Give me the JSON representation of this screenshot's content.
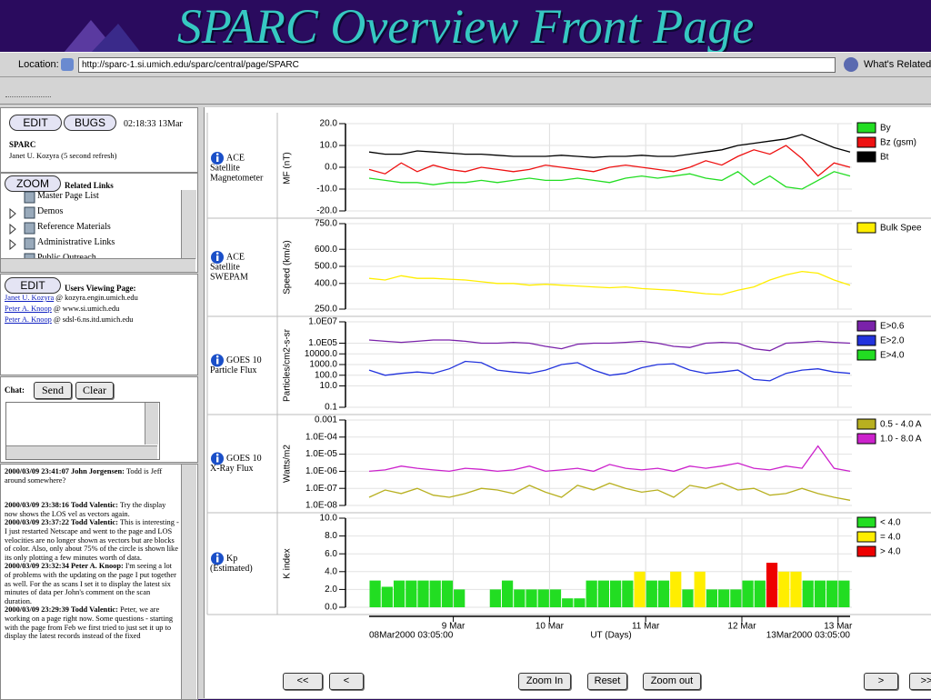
{
  "slide_title": "SPARC Overview Front Page",
  "browser": {
    "location_label": "Location:",
    "url": "http://sparc-1.si.umich.edu/sparc/central/page/SPARC",
    "whats_related": "What's Related"
  },
  "sidebar": {
    "edit_button": "EDIT",
    "bugs_button": "BUGS",
    "time": "02:18:33 13Mar",
    "page_title": "SPARC",
    "page_user": "Janet U. Kozyra (5 second refresh)",
    "zoom_button": "ZOOM",
    "related_links_title": "Related Links",
    "related_links": [
      "Master Page List",
      "Demos",
      "Reference Materials",
      "Administrative Links",
      "Public Outreach"
    ],
    "users_edit_button": "EDIT",
    "users_title": "Users Viewing Page:",
    "users": [
      {
        "name": "Janet U. Kozyra",
        "host": "@ kozyra.engin.umich.edu"
      },
      {
        "name": "Peter A. Knoop",
        "host": "@ www.si.umich.edu"
      },
      {
        "name": "Peter A. Knoop",
        "host": "@ sdsl-6.ns.itd.umich.edu"
      }
    ],
    "chat_label": "Chat:",
    "send_button": "Send",
    "clear_button": "Clear",
    "messages": [
      {
        "header": "2000/03/09 23:41:07 John Jorgensen:",
        "text": "Todd is Jeff around somewhere?"
      },
      {
        "header": "2000/03/09 23:38:16 Todd Valentic:",
        "text": "Try the display now shows the LOS vel as vectors again."
      },
      {
        "header": "2000/03/09 23:37:22 Todd Valentic:",
        "text": "This is interesting - I just restarted Netscape and went to the page and LOS velocities are no longer shown as vectors but are blocks of color. Also, only about 75% of the circle is shown like its only plotting a few minutes worth of data."
      },
      {
        "header": "2000/03/09 23:32:34 Peter A. Knoop:",
        "text": "I'm seeing a lot of problems with the updating on the page I put together as well. For the as scans I set it to display the latest six minutes of data per John's comment on the scan duration."
      },
      {
        "header": "2000/03/09 23:29:39 Todd Valentic:",
        "text": "Peter, we are working on a page right now. Some questions - starting with the page from Feb we first tried to just set it up to display the latest records instead of the fixed"
      }
    ]
  },
  "chart_data": [
    {
      "type": "line",
      "label_lines": [
        "ACE",
        "Satellite",
        "Magnetometer"
      ],
      "ylabel": "MF (nT)",
      "log_scale": false,
      "grid": true,
      "ylim": [
        -20,
        20
      ],
      "yticks": [
        {
          "value": 20,
          "label": "20.0"
        },
        {
          "value": 10,
          "label": "10.0"
        },
        {
          "value": 0,
          "label": "0.0"
        },
        {
          "value": -10,
          "label": "-10.0"
        },
        {
          "value": -20,
          "label": "-20.0"
        }
      ],
      "series": [
        {
          "name": "By",
          "color": "#22dd22",
          "values": [
            -5,
            -6,
            -7,
            -7,
            -8,
            -7,
            -7,
            -6,
            -7,
            -6,
            -5,
            -6,
            -6,
            -5,
            -6,
            -7,
            -5,
            -4,
            -5,
            -4,
            -3,
            -5,
            -6,
            -2,
            -8,
            -4,
            -9,
            -10,
            -6,
            -2,
            -4
          ]
        },
        {
          "name": "Bz (gsm)",
          "color": "#ee1111",
          "values": [
            -1,
            -3,
            2,
            -2,
            1,
            -1,
            -2,
            0,
            -1,
            -2,
            -1,
            1,
            0,
            -1,
            -2,
            0,
            1,
            0,
            -1,
            -2,
            0,
            3,
            1,
            5,
            8,
            6,
            10,
            4,
            -4,
            2,
            0
          ]
        },
        {
          "name": "Bt",
          "color": "#000000",
          "values": [
            7,
            6,
            6,
            7.5,
            7,
            6.5,
            6,
            6,
            5.5,
            5,
            5,
            5,
            5.5,
            5,
            4.5,
            5,
            5,
            5.5,
            5,
            5,
            6,
            7,
            8,
            10,
            11,
            12,
            13,
            15,
            12,
            9,
            7
          ]
        }
      ]
    },
    {
      "type": "line",
      "label_lines": [
        "ACE",
        "Satellite",
        "SWEPAM"
      ],
      "ylabel": "Speed (km/s)",
      "log_scale": false,
      "grid": true,
      "ylim": [
        250,
        750
      ],
      "yticks": [
        {
          "value": 750,
          "label": "750.0"
        },
        {
          "value": 600,
          "label": "600.0"
        },
        {
          "value": 500,
          "label": "500.0"
        },
        {
          "value": 400,
          "label": "400.0"
        },
        {
          "value": 250,
          "label": "250.0"
        }
      ],
      "series": [
        {
          "name": "Bulk Spee",
          "color": "#ffee00",
          "values": [
            430,
            420,
            445,
            430,
            430,
            425,
            420,
            410,
            400,
            400,
            390,
            395,
            390,
            385,
            380,
            375,
            380,
            370,
            365,
            360,
            350,
            340,
            335,
            360,
            380,
            420,
            450,
            470,
            460,
            420,
            390
          ]
        }
      ]
    },
    {
      "type": "line",
      "label_lines": [
        "GOES 10",
        "Particle Flux"
      ],
      "ylabel": "Particles/cm2-s-sr",
      "log_scale": true,
      "grid": true,
      "ylim": [
        0.1,
        10000000
      ],
      "yticks": [
        {
          "value": 10000000,
          "label": "1.0E07"
        },
        {
          "value": 100000,
          "label": "1.0E05"
        },
        {
          "value": 10000,
          "label": "10000.0"
        },
        {
          "value": 1000,
          "label": "1000.0"
        },
        {
          "value": 100,
          "label": "100.0"
        },
        {
          "value": 10,
          "label": "10.0"
        },
        0.1
      ],
      "series": [
        {
          "name": "E>0.6",
          "color": "#7a22aa",
          "values": [
            200000,
            150000,
            120000,
            150000,
            200000,
            200000,
            150000,
            100000,
            100000,
            120000,
            100000,
            50000,
            30000,
            80000,
            100000,
            100000,
            120000,
            150000,
            100000,
            50000,
            40000,
            100000,
            120000,
            100000,
            30000,
            20000,
            100000,
            120000,
            150000,
            120000,
            100000
          ]
        },
        {
          "name": "E>2.0",
          "color": "#2233dd",
          "values": [
            300,
            100,
            150,
            200,
            150,
            400,
            2000,
            1500,
            300,
            200,
            150,
            300,
            1000,
            1500,
            300,
            100,
            150,
            500,
            1000,
            1200,
            300,
            150,
            200,
            300,
            40,
            30,
            150,
            300,
            400,
            200,
            150
          ]
        },
        {
          "name": "E>4.0",
          "color": "#22dd22",
          "values": [
            null,
            null,
            null,
            null,
            null,
            null,
            null,
            null,
            null,
            null,
            null,
            null,
            null,
            null,
            null,
            null,
            null,
            null,
            null,
            null,
            null,
            null,
            null,
            null,
            null,
            null,
            null,
            null,
            null,
            null,
            null
          ]
        }
      ]
    },
    {
      "type": "line",
      "label_lines": [
        "GOES 10",
        "X-Ray Flux"
      ],
      "ylabel": "Watts/m2",
      "log_scale": true,
      "grid": true,
      "ylim": [
        1e-08,
        0.001
      ],
      "yticks": [
        0.001,
        {
          "value": 0.0001,
          "label": "1.0E-04"
        },
        {
          "value": 1e-05,
          "label": "1.0E-05"
        },
        {
          "value": 1e-06,
          "label": "1.0E-06"
        },
        {
          "value": 1e-07,
          "label": "1.0E-07"
        },
        {
          "value": 1e-08,
          "label": "1.0E-08"
        }
      ],
      "series": [
        {
          "name": "0.5 - 4.0 A",
          "color": "#b8b020",
          "values": [
            3e-08,
            8e-08,
            5e-08,
            1e-07,
            4e-08,
            3e-08,
            5e-08,
            1e-07,
            8e-08,
            5e-08,
            1.5e-07,
            6e-08,
            3e-08,
            1.5e-07,
            8e-08,
            2e-07,
            1e-07,
            6e-08,
            8e-08,
            3e-08,
            1.5e-07,
            1e-07,
            2e-07,
            8e-08,
            1e-07,
            4e-08,
            5e-08,
            1e-07,
            5e-08,
            3e-08,
            2e-08
          ]
        },
        {
          "name": "1.0 - 8.0 A",
          "color": "#cc22cc",
          "values": [
            1e-06,
            1.2e-06,
            2e-06,
            1.5e-06,
            1.2e-06,
            1e-06,
            1.5e-06,
            1.3e-06,
            1e-06,
            1.2e-06,
            2e-06,
            1e-06,
            1.2e-06,
            1.5e-06,
            1e-06,
            2.5e-06,
            1.5e-06,
            1.2e-06,
            1.5e-06,
            1e-06,
            2e-06,
            1.5e-06,
            2e-06,
            3e-06,
            1.5e-06,
            1.2e-06,
            2e-06,
            1.5e-06,
            3e-05,
            1.5e-06,
            1e-06
          ]
        }
      ]
    },
    {
      "type": "bar",
      "label_lines": [
        "Kp",
        "(Estimated)"
      ],
      "ylabel": "K index",
      "log_scale": false,
      "grid": true,
      "ylim": [
        0,
        10
      ],
      "yticks": [
        {
          "value": 10,
          "label": "10.0"
        },
        {
          "value": 8,
          "label": "8.0"
        },
        {
          "value": 6,
          "label": "6.0"
        },
        {
          "value": 4,
          "label": "4.0"
        },
        {
          "value": 2,
          "label": "2.0"
        },
        {
          "value": 0,
          "label": "0.0"
        }
      ],
      "series": [
        {
          "name": "< 4.0",
          "color": "#22dd22",
          "values": [
            3,
            2.3,
            3,
            3,
            3,
            3,
            3,
            2,
            0,
            0,
            2,
            3,
            2,
            2,
            2,
            2,
            1,
            1,
            3,
            3,
            3,
            3,
            null,
            3,
            3,
            null,
            2,
            null,
            2,
            2,
            2,
            3,
            3,
            null,
            null,
            null,
            3,
            3,
            3,
            3
          ]
        },
        {
          "name": "= 4.0",
          "color": "#ffee00",
          "values": [
            null,
            null,
            null,
            null,
            null,
            null,
            null,
            null,
            null,
            null,
            null,
            null,
            null,
            null,
            null,
            null,
            null,
            null,
            null,
            null,
            null,
            null,
            4,
            null,
            null,
            4,
            null,
            4,
            null,
            null,
            null,
            null,
            null,
            null,
            4,
            4,
            null,
            null,
            null,
            null
          ]
        },
        {
          "name": "> 4.0",
          "color": "#ee0000",
          "values": [
            null,
            null,
            null,
            null,
            null,
            null,
            null,
            null,
            null,
            null,
            null,
            null,
            null,
            null,
            null,
            null,
            null,
            null,
            null,
            null,
            null,
            null,
            null,
            null,
            null,
            null,
            null,
            null,
            null,
            null,
            null,
            null,
            null,
            5,
            null,
            null,
            null,
            null,
            null,
            null
          ]
        }
      ]
    }
  ],
  "time_axis": {
    "tick_labels": [
      "9 Mar",
      "10 Mar",
      "11 Mar",
      "12 Mar",
      "13 Mar"
    ],
    "start_label": "08Mar2000 03:05:00",
    "end_label": "13Mar2000 03:05:00",
    "label": "UT (Days)"
  },
  "controls": [
    "<<",
    "<",
    "Zoom In",
    "Reset",
    "Zoom out",
    ">",
    ">>"
  ]
}
